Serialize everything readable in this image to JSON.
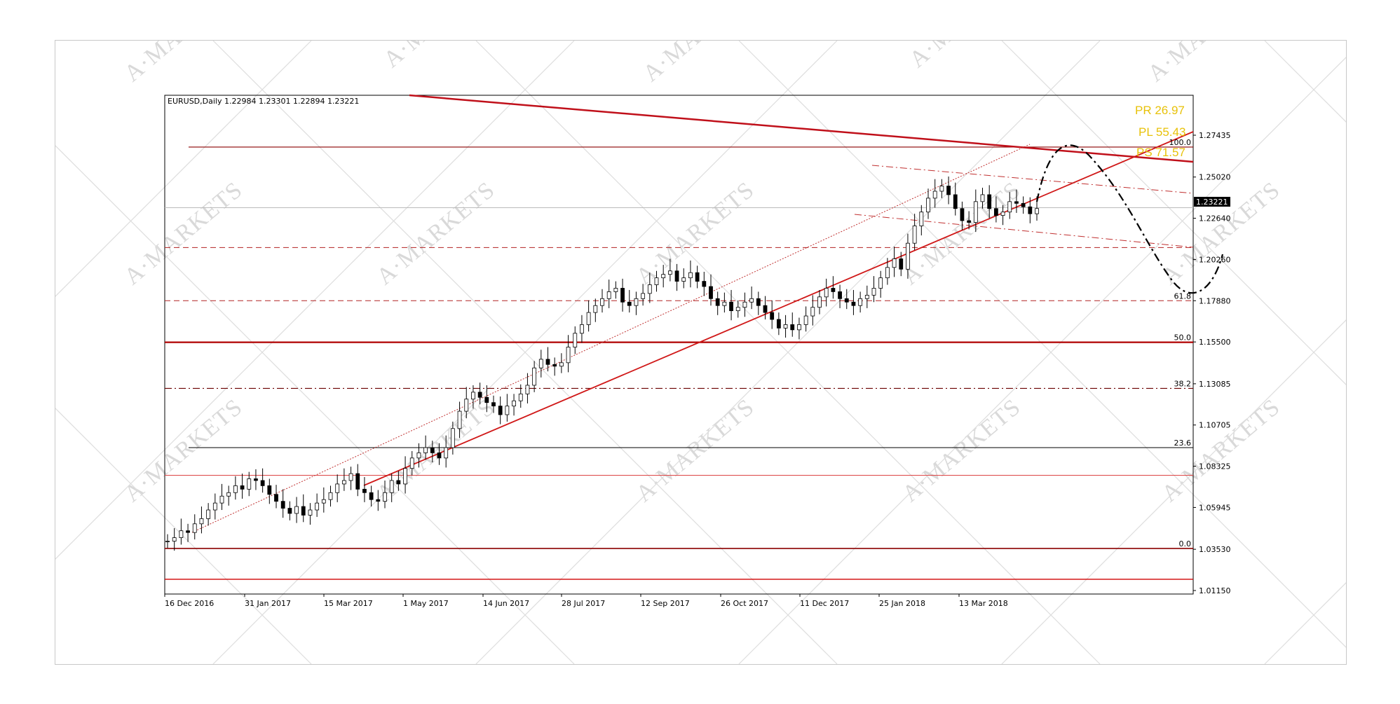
{
  "chart_data": {
    "type": "candlestick",
    "title": "EURUSD,Daily",
    "ohlc_header": "1.22984 1.23301 1.22894 1.23221",
    "last_price": "1.23221",
    "y_ticks": [
      "1.27435",
      "1.25020",
      "1.22640",
      "1.20260",
      "1.17880",
      "1.15500",
      "1.13085",
      "1.10705",
      "1.08325",
      "1.05945",
      "1.03530",
      "1.01150"
    ],
    "y_tick_values": [
      1.27435,
      1.2502,
      1.2264,
      1.2026,
      1.1788,
      1.155,
      1.13085,
      1.10705,
      1.08325,
      1.05945,
      1.0353,
      1.0115
    ],
    "x_ticks": [
      "16 Dec 2016",
      "31 Jan 2017",
      "15 Mar 2017",
      "1 May 2017",
      "14 Jun 2017",
      "28 Jul 2017",
      "12 Sep 2017",
      "26 Oct 2017",
      "11 Dec 2017",
      "25 Jan 2018",
      "13 Mar 2018"
    ],
    "fib_levels": [
      {
        "label": "100.0",
        "value": 1.2675
      },
      {
        "label": "61.8",
        "value": 1.1788
      },
      {
        "label": "50.0",
        "value": 1.1548
      },
      {
        "label": "38.2",
        "value": 1.1282
      },
      {
        "label": "23.6",
        "value": 1.094
      },
      {
        "label": "0.0",
        "value": 1.0358
      }
    ],
    "horizontal_lines": [
      1.2675,
      1.2325,
      1.2095,
      1.1788,
      1.1548,
      1.1282,
      1.094,
      1.078,
      1.0358,
      1.018
    ],
    "annotations": [
      "PR 26.97",
      "PL 55.43",
      "PS 71.57"
    ],
    "close_series": [
      1.04,
      1.042,
      1.046,
      1.045,
      1.05,
      1.053,
      1.058,
      1.062,
      1.066,
      1.068,
      1.072,
      1.07,
      1.076,
      1.075,
      1.072,
      1.067,
      1.063,
      1.059,
      1.056,
      1.06,
      1.055,
      1.058,
      1.062,
      1.064,
      1.068,
      1.073,
      1.075,
      1.079,
      1.07,
      1.068,
      1.064,
      1.063,
      1.068,
      1.075,
      1.073,
      1.082,
      1.088,
      1.091,
      1.094,
      1.091,
      1.088,
      1.094,
      1.105,
      1.115,
      1.122,
      1.126,
      1.123,
      1.12,
      1.118,
      1.113,
      1.118,
      1.121,
      1.125,
      1.13,
      1.14,
      1.145,
      1.142,
      1.141,
      1.143,
      1.152,
      1.16,
      1.165,
      1.172,
      1.176,
      1.18,
      1.184,
      1.186,
      1.178,
      1.176,
      1.18,
      1.183,
      1.188,
      1.192,
      1.194,
      1.196,
      1.19,
      1.192,
      1.195,
      1.19,
      1.187,
      1.18,
      1.176,
      1.178,
      1.173,
      1.175,
      1.178,
      1.18,
      1.176,
      1.172,
      1.168,
      1.163,
      1.165,
      1.162,
      1.165,
      1.17,
      1.175,
      1.181,
      1.186,
      1.184,
      1.18,
      1.178,
      1.176,
      1.18,
      1.182,
      1.186,
      1.192,
      1.198,
      1.203,
      1.197,
      1.212,
      1.222,
      1.23,
      1.238,
      1.242,
      1.245,
      1.24,
      1.232,
      1.225,
      1.224,
      1.236,
      1.24,
      1.232,
      1.228,
      1.23,
      1.236,
      1.235,
      1.233,
      1.229,
      1.232
    ],
    "forecast_path": "curved dash-dot projection: up to ~1.267 then down to ~1.180, then up"
  }
}
